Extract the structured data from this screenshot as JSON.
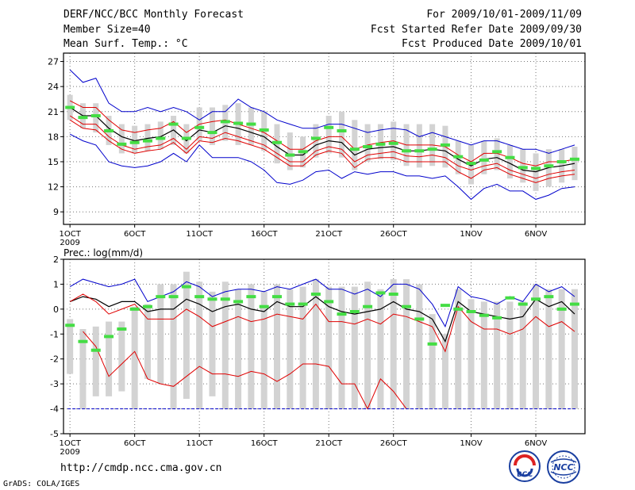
{
  "header": {
    "left": [
      "DERF/NCC/BCC Monthly Forecast",
      "Member Size=40",
      "Mean Surf. Temp.: °C"
    ],
    "right": [
      "For 2009/10/01-2009/11/09",
      "Fcst Started Refer Date 2009/09/30",
      "Fcst Produced Date 2009/10/01"
    ]
  },
  "footer": {
    "url": "http://cmdp.ncc.cma.gov.cn",
    "credit": "GrADS: COLA/IGES",
    "logo_bcc": "BCC",
    "logo_ncc": "NCC"
  },
  "colors": {
    "mean": "#000000",
    "ci": "#e00000",
    "extreme": "#0000cc",
    "box": "#d3d3d3",
    "obs": "#44dd44",
    "grid": "#777777"
  },
  "chart_data": [
    {
      "type": "line",
      "title": "Mean Surf. Temp.: °C",
      "x": [
        1,
        2,
        3,
        4,
        5,
        6,
        7,
        8,
        9,
        10,
        11,
        12,
        13,
        14,
        15,
        16,
        17,
        18,
        19,
        20,
        21,
        22,
        23,
        24,
        25,
        26,
        27,
        28,
        29,
        30,
        31,
        32,
        33,
        34,
        35,
        36,
        37,
        38,
        39,
        40
      ],
      "xticks": [
        1,
        6,
        11,
        16,
        21,
        26,
        32,
        37
      ],
      "xtick_labels": [
        "1OCT",
        "6OCT",
        "11OCT",
        "16OCT",
        "21OCT",
        "26OCT",
        "1NOV",
        "6NOV"
      ],
      "xtick_sub": "2009",
      "ylim": [
        7.5,
        28
      ],
      "yticks": [
        9,
        12,
        15,
        18,
        21,
        24,
        27
      ],
      "series": [
        {
          "name": "max",
          "values": [
            26.0,
            24.5,
            25.0,
            22.0,
            21.0,
            21.0,
            21.5,
            21.0,
            21.5,
            21.0,
            20.0,
            21.0,
            21.0,
            22.5,
            21.5,
            21.0,
            20.0,
            19.5,
            19.0,
            19.0,
            19.5,
            19.5,
            19.0,
            18.5,
            18.8,
            19.0,
            18.8,
            18.0,
            18.5,
            18.0,
            17.5,
            17.0,
            17.5,
            17.5,
            17.0,
            16.5,
            16.5,
            16.0,
            16.5,
            17.0
          ]
        },
        {
          "name": "upper",
          "values": [
            22.3,
            21.5,
            21.5,
            20.0,
            18.8,
            18.5,
            18.8,
            19.0,
            19.8,
            18.5,
            19.5,
            19.8,
            20.0,
            19.5,
            19.0,
            18.5,
            17.5,
            16.5,
            16.5,
            17.5,
            18.0,
            18.0,
            16.5,
            17.0,
            17.3,
            17.5,
            17.0,
            17.0,
            17.0,
            16.8,
            15.8,
            15.0,
            16.0,
            16.0,
            15.5,
            14.8,
            14.5,
            15.0,
            15.0,
            15.3
          ]
        },
        {
          "name": "mean",
          "values": [
            21.5,
            20.5,
            20.5,
            19.0,
            18.0,
            17.5,
            17.8,
            18.0,
            18.8,
            17.5,
            18.8,
            18.5,
            19.3,
            19.0,
            18.5,
            18.0,
            16.8,
            15.8,
            15.8,
            17.0,
            17.5,
            17.3,
            15.8,
            16.5,
            16.7,
            16.8,
            16.3,
            16.3,
            16.5,
            16.3,
            15.3,
            14.5,
            15.3,
            15.5,
            14.8,
            14.0,
            13.8,
            14.3,
            14.5,
            14.8
          ]
        },
        {
          "name": "lower",
          "values": [
            20.5,
            19.5,
            19.5,
            18.0,
            17.0,
            16.5,
            16.8,
            17.0,
            17.8,
            16.5,
            18.0,
            17.8,
            18.5,
            18.0,
            17.5,
            17.0,
            16.0,
            15.0,
            15.0,
            16.3,
            16.8,
            16.5,
            15.0,
            15.8,
            16.0,
            16.2,
            15.7,
            15.6,
            15.8,
            15.5,
            14.5,
            14.0,
            14.5,
            14.8,
            14.0,
            13.5,
            13.0,
            13.5,
            13.8,
            14.0
          ]
        },
        {
          "name": "lower2",
          "values": [
            20.0,
            19.0,
            18.8,
            17.5,
            16.5,
            16.0,
            16.3,
            16.5,
            17.3,
            16.0,
            17.5,
            17.3,
            17.8,
            17.5,
            17.0,
            16.5,
            15.5,
            14.5,
            14.5,
            15.8,
            16.3,
            16.0,
            14.3,
            15.3,
            15.5,
            15.5,
            15.0,
            15.0,
            15.0,
            15.0,
            13.8,
            13.0,
            14.0,
            14.3,
            13.5,
            13.0,
            12.5,
            13.0,
            13.3,
            13.5
          ]
        },
        {
          "name": "min",
          "values": [
            18.3,
            17.5,
            17.0,
            15.0,
            14.5,
            14.3,
            14.5,
            15.0,
            16.0,
            15.0,
            17.0,
            15.5,
            15.5,
            15.5,
            15.0,
            14.0,
            12.5,
            12.3,
            12.8,
            13.8,
            14.0,
            13.0,
            13.8,
            13.5,
            13.8,
            13.8,
            13.3,
            13.3,
            13.0,
            13.3,
            12.0,
            10.5,
            11.8,
            12.3,
            11.5,
            11.5,
            10.5,
            11.0,
            11.8,
            12.0
          ]
        },
        {
          "name": "box_top",
          "values": [
            23.0,
            22.0,
            22.0,
            20.5,
            19.5,
            19.3,
            19.5,
            19.8,
            20.5,
            19.5,
            21.5,
            21.5,
            21.8,
            22.0,
            21.5,
            21.0,
            19.5,
            18.5,
            18.0,
            19.5,
            20.5,
            21.0,
            20.0,
            19.5,
            19.5,
            19.8,
            19.5,
            19.5,
            19.5,
            19.3,
            17.5,
            17.0,
            17.5,
            17.8,
            17.0,
            16.5,
            16.0,
            16.5,
            16.5,
            16.8
          ]
        },
        {
          "name": "box_bottom",
          "values": [
            20.0,
            19.0,
            18.5,
            17.0,
            16.0,
            16.0,
            16.3,
            16.5,
            17.0,
            16.0,
            17.5,
            17.0,
            17.5,
            17.0,
            17.0,
            16.3,
            14.8,
            14.0,
            14.3,
            15.5,
            16.0,
            15.5,
            14.0,
            15.0,
            15.3,
            15.2,
            14.5,
            14.3,
            14.5,
            14.3,
            13.5,
            12.3,
            13.5,
            14.0,
            13.0,
            12.5,
            11.5,
            12.0,
            12.5,
            12.8
          ]
        },
        {
          "name": "obs",
          "values": [
            21.5,
            20.3,
            20.5,
            18.7,
            17.1,
            17.3,
            17.5,
            17.8,
            19.5,
            17.8,
            19.1,
            18.5,
            19.8,
            19.6,
            19.5,
            18.8,
            17.3,
            15.8,
            16.2,
            17.8,
            19.1,
            18.7,
            16.5,
            16.8,
            17.1,
            17.2,
            16.3,
            16.3,
            16.5,
            17.0,
            15.6,
            14.8,
            15.2,
            16.2,
            15.5,
            14.3,
            14.2,
            14.5,
            15.0,
            15.3
          ]
        }
      ]
    },
    {
      "type": "line",
      "title": "Prec.: log(mm/d)",
      "x": [
        1,
        2,
        3,
        4,
        5,
        6,
        7,
        8,
        9,
        10,
        11,
        12,
        13,
        14,
        15,
        16,
        17,
        18,
        19,
        20,
        21,
        22,
        23,
        24,
        25,
        26,
        27,
        28,
        29,
        30,
        31,
        32,
        33,
        34,
        35,
        36,
        37,
        38,
        39,
        40
      ],
      "xticks": [
        1,
        6,
        11,
        16,
        21,
        26,
        32,
        37
      ],
      "xtick_labels": [
        "1OCT",
        "6OCT",
        "11OCT",
        "16OCT",
        "21OCT",
        "26OCT",
        "1NOV",
        "6NOV"
      ],
      "xtick_sub": "2009",
      "ylim": [
        -5,
        2
      ],
      "yticks": [
        -5,
        -4,
        -3,
        -2,
        -1,
        0,
        1,
        2
      ],
      "series": [
        {
          "name": "max",
          "values": [
            0.9,
            1.2,
            1.05,
            0.9,
            1.0,
            1.2,
            0.3,
            0.5,
            0.7,
            1.1,
            0.9,
            0.5,
            0.7,
            0.8,
            0.8,
            0.7,
            0.9,
            0.8,
            1.0,
            1.2,
            0.8,
            0.8,
            0.6,
            0.8,
            0.5,
            1.0,
            1.0,
            0.8,
            0.2,
            -0.7,
            0.9,
            0.5,
            0.4,
            0.2,
            0.5,
            0.3,
            1.0,
            0.7,
            0.9,
            0.5
          ]
        },
        {
          "name": "mean",
          "values": [
            0.3,
            0.5,
            0.4,
            0.1,
            0.3,
            0.3,
            -0.1,
            0.0,
            0.0,
            0.4,
            0.2,
            -0.1,
            0.1,
            0.2,
            0.0,
            -0.1,
            0.3,
            0.1,
            0.1,
            0.5,
            0.1,
            -0.1,
            -0.2,
            -0.1,
            0.0,
            0.3,
            0.0,
            -0.1,
            -0.4,
            -1.3,
            0.3,
            -0.1,
            -0.2,
            -0.3,
            -0.4,
            -0.3,
            0.4,
            0.1,
            0.3,
            -0.2
          ]
        },
        {
          "name": "ci_upper",
          "values": [
            0.3,
            0.6,
            0.3,
            -0.2,
            0.0,
            0.2,
            -0.4,
            -0.4,
            -0.4,
            0.0,
            -0.3,
            -0.7,
            -0.5,
            -0.3,
            -0.5,
            -0.4,
            -0.2,
            -0.3,
            -0.4,
            0.2,
            -0.5,
            -0.5,
            -0.6,
            -0.4,
            -0.6,
            -0.2,
            -0.3,
            -0.5,
            -0.7,
            -1.7,
            0.1,
            -0.5,
            -0.8,
            -0.8,
            -1.0,
            -0.8,
            -0.3,
            -0.7,
            -0.5,
            -0.9
          ]
        },
        {
          "name": "ci_lower",
          "values": [
            null,
            -0.9,
            -1.5,
            -2.7,
            -2.2,
            -1.7,
            -2.8,
            -3.0,
            -3.1,
            -2.7,
            -2.3,
            -2.6,
            -2.6,
            -2.7,
            -2.5,
            -2.6,
            -2.9,
            -2.6,
            -2.2,
            -2.2,
            -2.3,
            -3.0,
            -3.0,
            -4.0,
            -2.8,
            -3.3,
            -4.0,
            null,
            null,
            -2.0,
            null,
            null,
            null,
            null,
            null,
            null,
            null,
            null,
            null,
            null
          ]
        },
        {
          "name": "box_top",
          "values": [
            -0.4,
            -0.8,
            -0.7,
            -0.5,
            -0.5,
            0.1,
            0.2,
            1.0,
            1.0,
            1.5,
            1.1,
            0.7,
            1.1,
            0.8,
            1.0,
            0.7,
            1.0,
            0.8,
            0.9,
            1.2,
            0.9,
            0.9,
            0.9,
            1.1,
            0.8,
            1.2,
            1.2,
            1.0,
            -0.2,
            -1.0,
            0.8,
            0.4,
            0.3,
            0.3,
            0.3,
            0.3,
            1.0,
            0.8,
            0.8,
            0.8
          ]
        },
        {
          "name": "box_bottom",
          "values": [
            -2.6,
            -4.0,
            -3.5,
            -3.5,
            -3.3,
            -4.0,
            -2.8,
            -3.0,
            -4.0,
            -3.6,
            -4.0,
            -3.5,
            -4.0,
            -4.0,
            -4.0,
            -4.0,
            -4.0,
            -4.0,
            -4.0,
            -4.0,
            -4.0,
            -4.0,
            -4.0,
            -4.0,
            -4.0,
            -4.0,
            -4.0,
            -4.0,
            -4.0,
            -4.0,
            -4.0,
            -4.0,
            -4.0,
            -4.0,
            -4.0,
            -4.0,
            -4.0,
            -4.0,
            -4.0,
            -4.0
          ]
        },
        {
          "name": "obs",
          "values": [
            -0.65,
            -1.3,
            -1.65,
            -1.1,
            -0.8,
            0.0,
            0.1,
            0.5,
            0.5,
            0.9,
            0.5,
            0.4,
            0.4,
            0.3,
            0.5,
            0.1,
            0.5,
            0.2,
            0.2,
            0.6,
            0.3,
            -0.2,
            -0.1,
            0.1,
            0.65,
            0.6,
            0.1,
            -0.4,
            -1.4,
            0.15,
            0.0,
            -0.1,
            -0.25,
            -0.35,
            0.45,
            0.2,
            0.4,
            0.5,
            0.0,
            0.2
          ]
        }
      ]
    }
  ]
}
